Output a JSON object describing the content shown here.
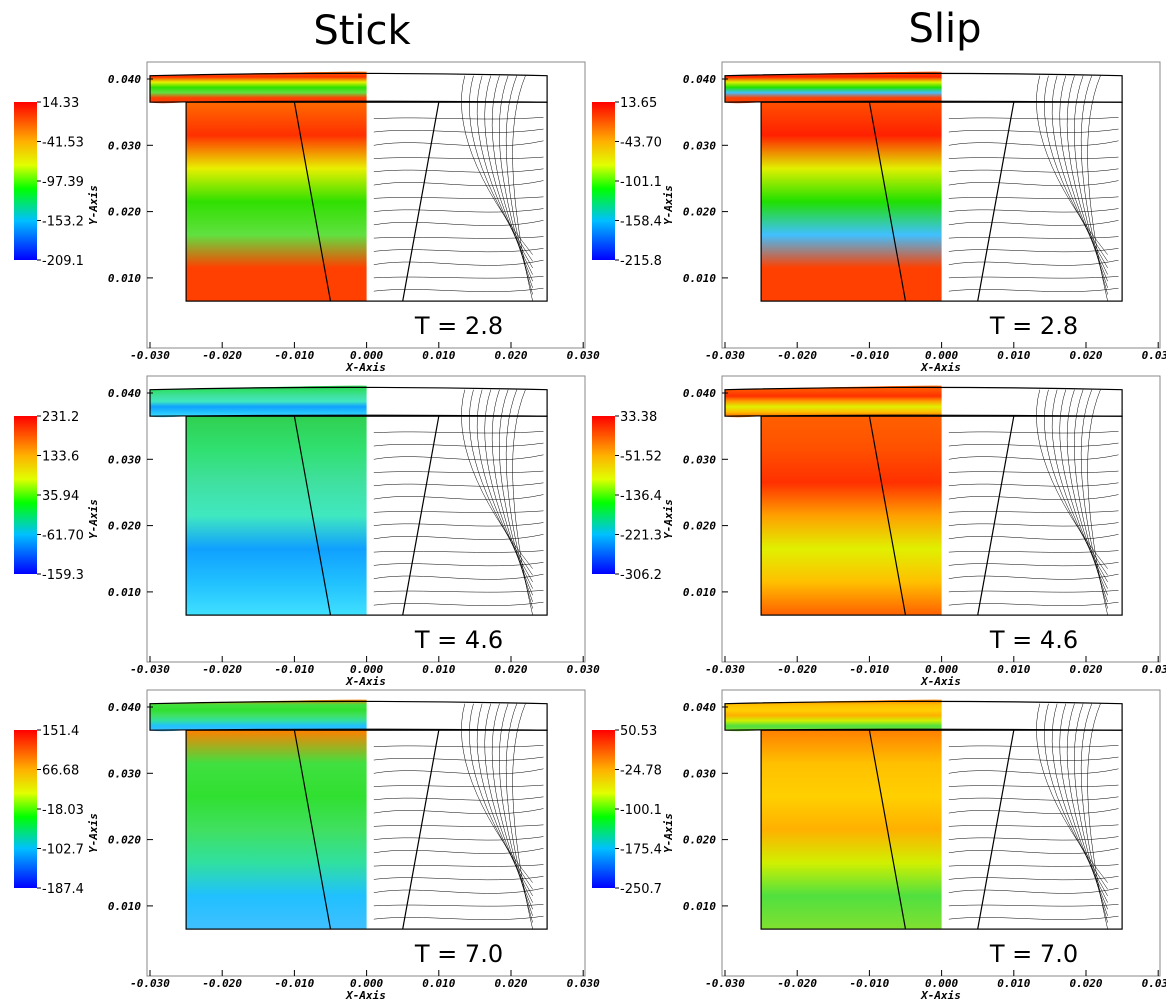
{
  "columns": [
    {
      "title": "Stick"
    },
    {
      "title": "Slip"
    }
  ],
  "panels": [
    {
      "colorbar": [
        "14.33",
        "-41.53",
        "-97.39",
        "-153.2",
        "-209.1"
      ],
      "time": "T = 2.8"
    },
    {
      "colorbar": [
        "13.65",
        "-43.70",
        "-101.1",
        "-158.4",
        "-215.8"
      ],
      "time": "T = 2.8"
    },
    {
      "colorbar": [
        "231.2",
        "133.6",
        "35.94",
        "-61.70",
        "-159.3"
      ],
      "time": "T = 4.6"
    },
    {
      "colorbar": [
        "33.38",
        "-51.52",
        "-136.4",
        "-221.3",
        "-306.2"
      ],
      "time": "T = 4.6"
    },
    {
      "colorbar": [
        "151.4",
        "66.68",
        "-18.03",
        "-102.7",
        "-187.4"
      ],
      "time": "T = 7.0"
    },
    {
      "colorbar": [
        "50.53",
        "-24.78",
        "-100.1",
        "-175.4",
        "-250.7"
      ],
      "time": "T = 7.0"
    }
  ],
  "axes": {
    "x_label": "X-Axis",
    "y_label": "Y-Axis",
    "x_ticks": [
      "-0.030",
      "-0.020",
      "-0.010",
      "0.000",
      "0.010",
      "0.020",
      "0.030"
    ],
    "y_ticks": [
      "0.040",
      "0.030",
      "0.020",
      "0.010"
    ]
  }
}
